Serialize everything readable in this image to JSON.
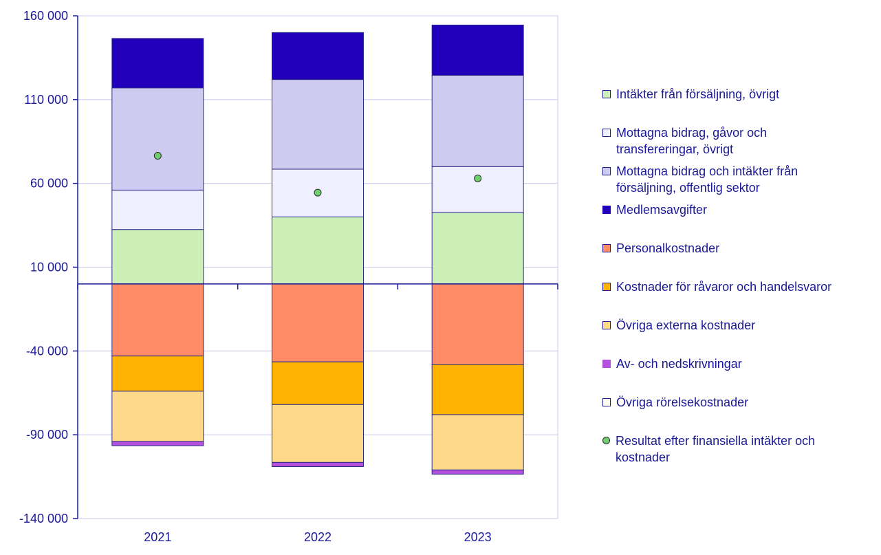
{
  "chart_data": {
    "type": "bar",
    "stacked": true,
    "categories": [
      "2021",
      "2022",
      "2023"
    ],
    "ylim": [
      -140000,
      160000
    ],
    "yticks": [
      160000,
      110000,
      60000,
      10000,
      -40000,
      -90000,
      -140000
    ],
    "ytick_labels": [
      "160 000",
      "110 000",
      "60 000",
      "10 000",
      "-40 000",
      "-90 000",
      "-140 000"
    ],
    "grid": true,
    "legend_position": "right",
    "series": [
      {
        "name": "Intäkter från försäljning, övrigt",
        "values": [
          32500,
          40000,
          42500
        ],
        "color": "#ccf0b8"
      },
      {
        "name": "Mottagna bidrag, gåvor och transfereringar, övrigt",
        "values": [
          23500,
          28500,
          27500
        ],
        "color": "#f0efff"
      },
      {
        "name": "Mottagna bidrag och intäkter från försäljning, offentlig sektor",
        "values": [
          61000,
          53500,
          54500
        ],
        "color": "#cfcaf0"
      },
      {
        "name": "Medlemsavgifter",
        "values": [
          29500,
          28000,
          30000
        ],
        "color": "#2200bb"
      },
      {
        "name": "Personalkostnader",
        "values": [
          -43000,
          -46500,
          -48000
        ],
        "color": "#ff8c66"
      },
      {
        "name": "Kostnader för råvaror och handelsvaror",
        "values": [
          -21000,
          -25500,
          -30000
        ],
        "color": "#ffb300"
      },
      {
        "name": "Övriga externa kostnader",
        "values": [
          -30000,
          -34500,
          -33000
        ],
        "color": "#ffd98a"
      },
      {
        "name": "Av- och nedskrivningar",
        "values": [
          -2500,
          -2500,
          -2500
        ],
        "color": "#b54fdd"
      },
      {
        "name": "Övriga rörelsekostnader",
        "values": [
          0,
          0,
          0
        ],
        "color": "#ffffff"
      }
    ],
    "points": {
      "name": "Resultat efter finansiella intäkter och kostnader",
      "values": [
        76500,
        54500,
        63000
      ],
      "color": "#6fcf6f"
    }
  },
  "legend": [
    {
      "lines": [
        "Intäkter från försäljning, övrigt"
      ],
      "color": "#ccf0b8",
      "marker": "square"
    },
    {
      "lines": [
        "Mottagna bidrag, gåvor och",
        "transfereringar, övrigt"
      ],
      "color": "#f0efff",
      "marker": "square"
    },
    {
      "lines": [
        "Mottagna bidrag och intäkter från",
        "försäljning, offentlig sektor"
      ],
      "color": "#cfcaf0",
      "marker": "square"
    },
    {
      "lines": [
        "Medlemsavgifter"
      ],
      "color": "#2200bb",
      "marker": "square"
    },
    {
      "lines": [
        "Personalkostnader"
      ],
      "color": "#ff8c66",
      "marker": "square"
    },
    {
      "lines": [
        "Kostnader för råvaror och handelsvaror"
      ],
      "color": "#ffb300",
      "marker": "square"
    },
    {
      "lines": [
        "Övriga externa kostnader"
      ],
      "color": "#ffd98a",
      "marker": "square"
    },
    {
      "lines": [
        "Av- och nedskrivningar"
      ],
      "color": "#b54fdd",
      "marker": "square"
    },
    {
      "lines": [
        "Övriga rörelsekostnader"
      ],
      "color": "#ffffff",
      "marker": "square"
    },
    {
      "lines": [
        "Resultat efter finansiella intäkter och",
        "kostnader"
      ],
      "color": "#6fcf6f",
      "marker": "dot"
    }
  ]
}
